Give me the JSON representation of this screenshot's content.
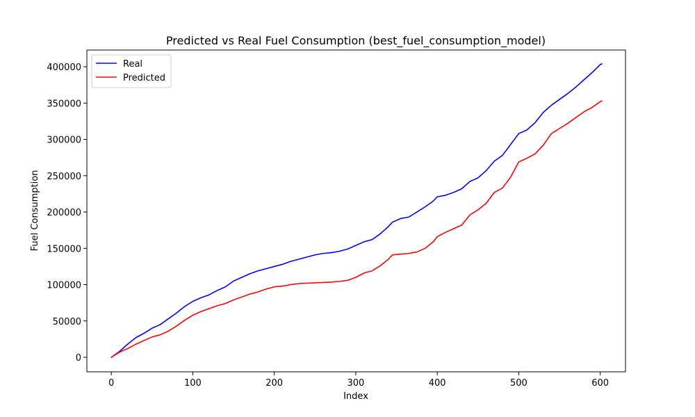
{
  "chart_data": {
    "type": "line",
    "title": "Predicted vs Real Fuel Consumption (best_fuel_consumption_model)",
    "xlabel": "Index",
    "ylabel": "Fuel Consumption",
    "xlim": [
      -30,
      631
    ],
    "ylim": [
      -20000,
      423000
    ],
    "x_ticks": [
      0,
      100,
      200,
      300,
      400,
      500,
      600
    ],
    "y_ticks": [
      0,
      50000,
      100000,
      150000,
      200000,
      250000,
      300000,
      350000,
      400000
    ],
    "x_tick_labels": [
      "0",
      "100",
      "200",
      "300",
      "400",
      "500",
      "600"
    ],
    "y_tick_labels": [
      "0",
      "50000",
      "100000",
      "150000",
      "200000",
      "250000",
      "300000",
      "350000",
      "400000"
    ],
    "grid": false,
    "legend_position": "top-left",
    "series": [
      {
        "name": "Real",
        "color": "#0000ff",
        "points": [
          [
            0,
            0
          ],
          [
            10,
            8000
          ],
          [
            20,
            18000
          ],
          [
            30,
            27000
          ],
          [
            40,
            33000
          ],
          [
            50,
            40000
          ],
          [
            60,
            45000
          ],
          [
            70,
            53000
          ],
          [
            80,
            61000
          ],
          [
            90,
            70000
          ],
          [
            100,
            77000
          ],
          [
            110,
            82000
          ],
          [
            120,
            86000
          ],
          [
            130,
            92000
          ],
          [
            140,
            97000
          ],
          [
            150,
            105000
          ],
          [
            160,
            110000
          ],
          [
            170,
            115000
          ],
          [
            180,
            119000
          ],
          [
            190,
            122000
          ],
          [
            200,
            125000
          ],
          [
            210,
            128000
          ],
          [
            220,
            132000
          ],
          [
            230,
            135000
          ],
          [
            240,
            138000
          ],
          [
            250,
            141000
          ],
          [
            260,
            143000
          ],
          [
            270,
            144000
          ],
          [
            280,
            146000
          ],
          [
            290,
            149000
          ],
          [
            300,
            154000
          ],
          [
            310,
            159000
          ],
          [
            320,
            162000
          ],
          [
            330,
            170000
          ],
          [
            340,
            180000
          ],
          [
            345,
            186000
          ],
          [
            355,
            191000
          ],
          [
            365,
            193000
          ],
          [
            375,
            200000
          ],
          [
            385,
            207000
          ],
          [
            395,
            215000
          ],
          [
            400,
            221000
          ],
          [
            410,
            223000
          ],
          [
            420,
            227000
          ],
          [
            430,
            232000
          ],
          [
            440,
            242000
          ],
          [
            450,
            247000
          ],
          [
            460,
            257000
          ],
          [
            470,
            270000
          ],
          [
            480,
            278000
          ],
          [
            490,
            293000
          ],
          [
            500,
            308000
          ],
          [
            510,
            313000
          ],
          [
            520,
            323000
          ],
          [
            530,
            337000
          ],
          [
            540,
            347000
          ],
          [
            550,
            355000
          ],
          [
            560,
            363000
          ],
          [
            570,
            372000
          ],
          [
            580,
            382000
          ],
          [
            590,
            392000
          ],
          [
            600,
            403000
          ],
          [
            602,
            404000
          ]
        ]
      },
      {
        "name": "Predicted",
        "color": "#ff0000",
        "points": [
          [
            0,
            0
          ],
          [
            10,
            7000
          ],
          [
            20,
            12000
          ],
          [
            30,
            18000
          ],
          [
            40,
            23000
          ],
          [
            50,
            28000
          ],
          [
            60,
            31000
          ],
          [
            70,
            36000
          ],
          [
            80,
            43000
          ],
          [
            90,
            51000
          ],
          [
            100,
            58000
          ],
          [
            110,
            63000
          ],
          [
            120,
            67000
          ],
          [
            130,
            71000
          ],
          [
            140,
            74000
          ],
          [
            150,
            79000
          ],
          [
            160,
            83000
          ],
          [
            170,
            87000
          ],
          [
            180,
            90000
          ],
          [
            190,
            94000
          ],
          [
            200,
            97000
          ],
          [
            210,
            98000
          ],
          [
            220,
            100000
          ],
          [
            230,
            101500
          ],
          [
            240,
            102000
          ],
          [
            250,
            102500
          ],
          [
            260,
            103000
          ],
          [
            270,
            103500
          ],
          [
            280,
            104500
          ],
          [
            290,
            106000
          ],
          [
            300,
            110000
          ],
          [
            310,
            116000
          ],
          [
            320,
            119000
          ],
          [
            330,
            126000
          ],
          [
            340,
            135000
          ],
          [
            345,
            141000
          ],
          [
            355,
            142000
          ],
          [
            365,
            143000
          ],
          [
            375,
            145000
          ],
          [
            385,
            150000
          ],
          [
            395,
            159000
          ],
          [
            400,
            166000
          ],
          [
            410,
            172000
          ],
          [
            420,
            177000
          ],
          [
            430,
            182000
          ],
          [
            440,
            196000
          ],
          [
            450,
            203000
          ],
          [
            460,
            212000
          ],
          [
            470,
            227000
          ],
          [
            480,
            233000
          ],
          [
            490,
            248000
          ],
          [
            500,
            269000
          ],
          [
            510,
            274000
          ],
          [
            520,
            280000
          ],
          [
            530,
            292000
          ],
          [
            540,
            308000
          ],
          [
            550,
            315000
          ],
          [
            560,
            322000
          ],
          [
            570,
            330000
          ],
          [
            580,
            338000
          ],
          [
            590,
            344000
          ],
          [
            600,
            352000
          ],
          [
            602,
            353000
          ]
        ]
      }
    ]
  }
}
